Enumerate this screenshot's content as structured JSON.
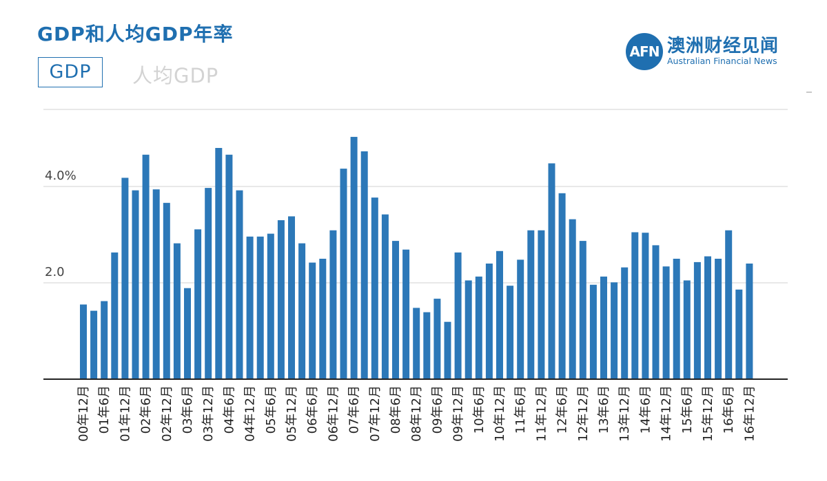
{
  "header": {
    "title": "GDP和人均GDP年率",
    "tabs": [
      {
        "label": "GDP",
        "active": true
      },
      {
        "label": "人均GDP",
        "active": false
      }
    ]
  },
  "logo": {
    "badge": "AFN",
    "name_cn": "澳洲财经见闻",
    "name_en": "Australian Financial News"
  },
  "colors": {
    "accent": "#1f6fb0",
    "bar": "#2c78b8",
    "grid": "#d9d9d9",
    "axis": "#222222",
    "inactive_tab": "#d3d3d3"
  },
  "chart_data": {
    "type": "bar",
    "title": "",
    "xlabel": "",
    "ylabel": "",
    "ylim": [
      0,
      5.6
    ],
    "yticks": [
      {
        "value": 2.0,
        "label": "2.0"
      },
      {
        "value": 4.0,
        "label": "4.0%"
      }
    ],
    "top_gridline": 5.6,
    "x_tick_labels": [
      "00年12月",
      "01年6月",
      "01年12月",
      "02年6月",
      "02年12月",
      "03年6月",
      "03年12月",
      "04年6月",
      "04年12月",
      "05年6月",
      "05年12月",
      "06年6月",
      "06年12月",
      "07年6月",
      "07年12月",
      "08年6月",
      "08年12月",
      "09年6月",
      "09年12月",
      "10年6月",
      "10年12月",
      "11年6月",
      "11年12月",
      "12年6月",
      "12年12月",
      "13年6月",
      "13年12月",
      "14年6月",
      "14年12月",
      "15年6月",
      "15年12月",
      "16年6月",
      "16年12月"
    ],
    "categories": [
      "00Q4",
      "01Q1",
      "01Q2",
      "01Q3",
      "01Q4",
      "02Q1",
      "02Q2",
      "02Q3",
      "02Q4",
      "03Q1",
      "03Q2",
      "03Q3",
      "03Q4",
      "04Q1",
      "04Q2",
      "04Q3",
      "04Q4",
      "05Q1",
      "05Q2",
      "05Q3",
      "05Q4",
      "06Q1",
      "06Q2",
      "06Q3",
      "06Q4",
      "07Q1",
      "07Q2",
      "07Q3",
      "07Q4",
      "08Q1",
      "08Q2",
      "08Q3",
      "08Q4",
      "09Q1",
      "09Q2",
      "09Q3",
      "09Q4",
      "10Q1",
      "10Q2",
      "10Q3",
      "10Q4",
      "11Q1",
      "11Q2",
      "11Q3",
      "11Q4",
      "12Q1",
      "12Q2",
      "12Q3",
      "12Q4",
      "13Q1",
      "13Q2",
      "13Q3",
      "13Q4",
      "14Q1",
      "14Q2",
      "14Q3",
      "14Q4",
      "15Q1",
      "15Q2",
      "15Q3",
      "15Q4",
      "16Q1",
      "16Q2",
      "16Q3",
      "16Q4"
    ],
    "series": [
      {
        "values": [
          1.55,
          1.42,
          1.62,
          2.63,
          4.18,
          3.92,
          4.66,
          3.94,
          3.66,
          2.82,
          1.89,
          3.11,
          3.97,
          4.8,
          4.66,
          3.92,
          2.96,
          2.96,
          3.02,
          3.3,
          3.38,
          2.82,
          2.42,
          2.5,
          3.09,
          4.37,
          5.03,
          4.73,
          3.77,
          3.42,
          2.87,
          2.69,
          1.48,
          1.39,
          1.67,
          1.19,
          2.63,
          2.05,
          2.13,
          2.4,
          2.66,
          1.94,
          2.48,
          3.09,
          3.09,
          4.48,
          3.86,
          3.32,
          2.87,
          1.96,
          2.13,
          2.01,
          2.32,
          3.05,
          3.04,
          2.78,
          2.34,
          2.5,
          2.05,
          2.43,
          2.55,
          2.5,
          3.09,
          1.86,
          2.4
        ]
      }
    ],
    "grid": true,
    "legend": "none"
  }
}
